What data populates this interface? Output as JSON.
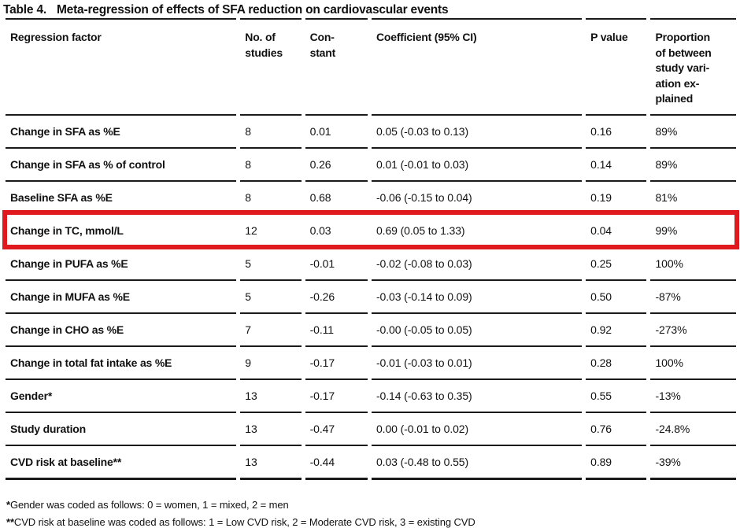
{
  "title": {
    "label": "Table 4.",
    "text": "Meta-regression of effects of SFA reduction on cardiovascular events"
  },
  "table": {
    "columns": [
      {
        "label": "Regression factor"
      },
      {
        "label": "No. of\nstudies"
      },
      {
        "label": "Con-\nstant"
      },
      {
        "label": "Coefficient (95% CI)"
      },
      {
        "label": "P value"
      },
      {
        "label": "Proportion\nof between\nstudy vari-\nation ex-\nplained"
      }
    ],
    "rows": [
      {
        "factor": "Change in SFA as %E",
        "studies": "8",
        "constant": "0.01",
        "coefficient": "0.05 (-0.03 to 0.13)",
        "p_value": "0.16",
        "proportion": "89%",
        "highlighted": false
      },
      {
        "factor": "Change in SFA as % of control",
        "studies": "8",
        "constant": "0.26",
        "coefficient": "0.01 (-0.01 to 0.03)",
        "p_value": "0.14",
        "proportion": "89%",
        "highlighted": false
      },
      {
        "factor": "Baseline SFA as %E",
        "studies": "8",
        "constant": "0.68",
        "coefficient": "-0.06 (-0.15 to 0.04)",
        "p_value": "0.19",
        "proportion": "81%",
        "highlighted": false
      },
      {
        "factor": "Change in TC, mmol/L",
        "studies": "12",
        "constant": "0.03",
        "coefficient": "0.69 (0.05 to 1.33)",
        "p_value": "0.04",
        "proportion": "99%",
        "highlighted": true
      },
      {
        "factor": "Change in PUFA as %E",
        "studies": "5",
        "constant": "-0.01",
        "coefficient": "-0.02 (-0.08 to 0.03)",
        "p_value": "0.25",
        "proportion": "100%",
        "highlighted": false
      },
      {
        "factor": "Change in MUFA as %E",
        "studies": "5",
        "constant": "-0.26",
        "coefficient": "-0.03 (-0.14 to 0.09)",
        "p_value": "0.50",
        "proportion": "-87%",
        "highlighted": false
      },
      {
        "factor": "Change in CHO as %E",
        "studies": "7",
        "constant": "-0.11",
        "coefficient": "-0.00 (-0.05 to 0.05)",
        "p_value": "0.92",
        "proportion": "-273%",
        "highlighted": false
      },
      {
        "factor": "Change in total fat intake as %E",
        "studies": "9",
        "constant": "-0.17",
        "coefficient": "-0.01 (-0.03 to 0.01)",
        "p_value": "0.28",
        "proportion": "100%",
        "highlighted": false
      },
      {
        "factor": "Gender*",
        "studies": "13",
        "constant": "-0.17",
        "coefficient": "-0.14 (-0.63 to 0.35)",
        "p_value": "0.55",
        "proportion": "-13%",
        "highlighted": false
      },
      {
        "factor": "Study duration",
        "studies": "13",
        "constant": "-0.47",
        "coefficient": "0.00 (-0.01 to 0.02)",
        "p_value": "0.76",
        "proportion": "-24.8%",
        "highlighted": false
      },
      {
        "factor": "CVD risk at baseline**",
        "studies": "13",
        "constant": "-0.44",
        "coefficient": "0.03 (-0.48 to 0.55)",
        "p_value": "0.89",
        "proportion": "-39%",
        "highlighted": false
      }
    ]
  },
  "footnotes": [
    {
      "marker": "*",
      "text": "Gender was coded as follows: 0 = women, 1 = mixed, 2 = men"
    },
    {
      "marker": "**",
      "text": "CVD risk at baseline was coded as follows: 1 = Low CVD risk, 2 = Moderate CVD risk, 3 = existing CVD"
    }
  ],
  "colors": {
    "highlight_border": "#e0191f",
    "rule": "#1a1a1a",
    "text": "#111111",
    "background": "#ffffff"
  }
}
